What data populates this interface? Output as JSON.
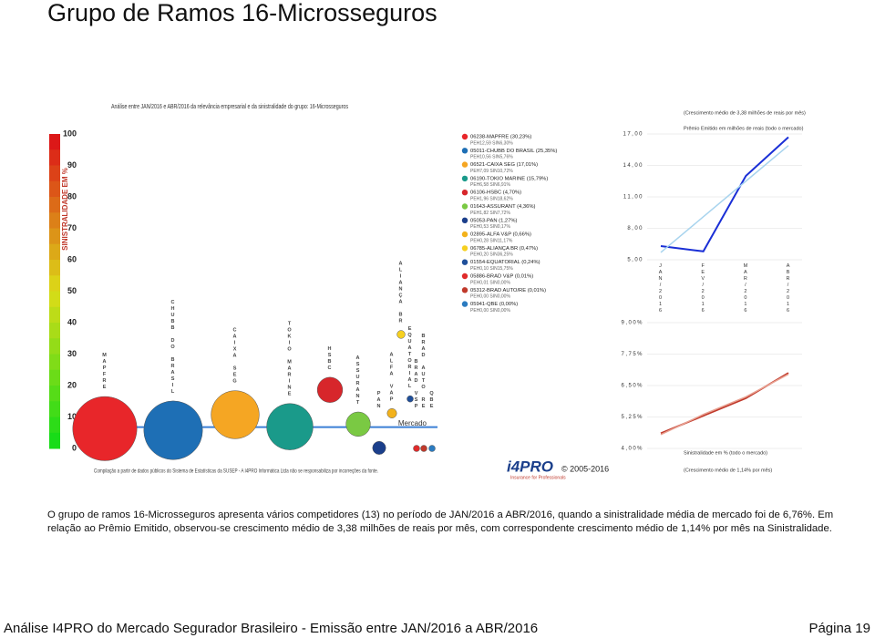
{
  "slide": {
    "title": "Grupo de Ramos 16-Microsseguros",
    "paragraph": "O grupo de ramos 16-Microsseguros apresenta vários competidores (13) no período de JAN/2016 a ABR/2016, quando a sinistralidade média de mercado foi de 6,76%. Em relação ao Prêmio Emitido, observou-se crescimento médio de 3,38 milhões de reais por mês, com correspondente crescimento médio de 1,14% por mês na Sinistralidade.",
    "footer": "Análise I4PRO do Mercado Segurador Brasileiro - Emissão entre JAN/2016 a ABR/2016",
    "page": "Página 19",
    "logo": "i4PRO",
    "logo_tagline": "Insurance for Professionals",
    "copyright": "© 2005-2016"
  },
  "chart_data": [
    {
      "type": "bubble",
      "title": "Análise entre JAN/2016 e ABR/2016 da relevância empresarial e da sinistralidade do grupo: 16-Microsseguros",
      "y_label": "SINISTRALIDADE EM %",
      "note": "Compilação a partir de dados públicos do Sistema de Estatísticas da SUSEP - A I4PRO Informática Ltda não se responsabiliza por incorreções da fonte.",
      "ylim": [
        0,
        100
      ],
      "yticks": [
        0,
        10,
        20,
        30,
        40,
        50,
        60,
        70,
        80,
        90,
        100
      ],
      "market_label": "Mercado",
      "market_value": 6.76,
      "categories": [
        "MAPFRE",
        "CHUBB DO BRASIL",
        "CAIXA SEG",
        "TOKIO MARINE",
        "HSBC",
        "ASSURANT",
        "PAN",
        "ALFA VAP",
        "ALIANÇA BR",
        "EQUATORIAL",
        "BRAD VSP",
        "BRAD AUTO RE",
        "QBE"
      ],
      "values": [
        6.3,
        5.76,
        10.72,
        6.91,
        18.62,
        7.72,
        0.17,
        11.17,
        36.25,
        15.75,
        0.0,
        0.0,
        0.0
      ],
      "sizes": [
        30.23,
        25.35,
        17.01,
        15.79,
        4.7,
        4.36,
        1.27,
        0.66,
        0.47,
        0.24,
        0.01,
        0.01,
        0.0
      ],
      "colors": [
        "#e8262a",
        "#1e6fb5",
        "#f5a623",
        "#1a9a8a",
        "#d7262b",
        "#7ac943",
        "#1b3f8b",
        "#f3b21b",
        "#f6d020",
        "#1f4f9a",
        "#e02b2b",
        "#c0392b",
        "#2b7bc0"
      ],
      "legend": [
        "06238-MAPFRE (30,23%)",
        "05011-CHUBB DO BRASIL (25,35%)",
        "06521-CAIXA SEG (17,01%)",
        "06190-TOKIO MARINE (15,79%)",
        "06106-HSBC (4,70%)",
        "01643-ASSURANT (4,36%)",
        "05053-PAN (1,27%)",
        "02895-ALFA V&P (0,66%)",
        "06785-ALIANÇA BR (0,47%)",
        "01554-EQUATORIAL (0,24%)",
        "05886-BRAD V&P (0,01%)",
        "05312-BRAD AUTO/RE (0,01%)",
        "05941-QBE (0,00%)"
      ],
      "legend_details": [
        "PEH12,59 SIN6,30%",
        "PEH10,56 SIN5,76%",
        "PEH7,09 SIN10,72%",
        "PEH6,58 SIN6,91%",
        "PEH1,96 SIN18,62%",
        "PEH1,82 SIN7,72%",
        "PEH0,53 SIN0,17%",
        "PEH0,28 SIN11,17%",
        "PEH0,20 SIN36,25%",
        "PEH0,10 SIN15,75%",
        "PEH0,01 SIN0,00%",
        "PEH0,00 SIN0,00%",
        "PEH0,00 SIN0,00%"
      ],
      "legend_title": "Mercado"
    },
    {
      "type": "line",
      "title": "(Crescimento médio de 3,38 milhões de reais por mês)",
      "subtitle": "Prêmio Emitido em milhões de reais (todo o mercado)",
      "categories": [
        "JAN/2016",
        "FEV/2016",
        "MAR/2016",
        "ABR/2016"
      ],
      "ylim": [
        5,
        17
      ],
      "yticks": [
        {
          "value": 5,
          "label": "5,00"
        },
        {
          "value": 8,
          "label": "8,00"
        },
        {
          "value": 11,
          "label": "11,00"
        },
        {
          "value": 14,
          "label": "14,00"
        },
        {
          "value": 17,
          "label": "17,00"
        }
      ],
      "series": [
        {
          "color": "#1a2fd6",
          "values": [
            6.3,
            5.8,
            13.0,
            16.7
          ]
        },
        {
          "color": "#a8d4ee",
          "values": [
            5.7,
            9.1,
            12.5,
            15.9
          ]
        }
      ]
    },
    {
      "type": "line",
      "title": "Sinistralidade em % (todo o mercado)",
      "subtitle": "(Crescimento médio de 1,14% por mês)",
      "categories": [
        "JAN/2016",
        "FEV/2016",
        "MAR/2016",
        "ABR/2016"
      ],
      "ylim": [
        4,
        9
      ],
      "yticks": [
        {
          "value": 4,
          "label": "4,00%"
        },
        {
          "value": 5.25,
          "label": "5,25%"
        },
        {
          "value": 6.5,
          "label": "6,50%"
        },
        {
          "value": 7.75,
          "label": "7,75%"
        },
        {
          "value": 9,
          "label": "9,00%"
        }
      ],
      "series": [
        {
          "color": "#c0392b",
          "values": [
            4.6,
            5.3,
            6.0,
            7.0
          ]
        },
        {
          "color": "#e8a090",
          "values": [
            4.55,
            5.35,
            6.05,
            6.95
          ]
        }
      ]
    }
  ]
}
